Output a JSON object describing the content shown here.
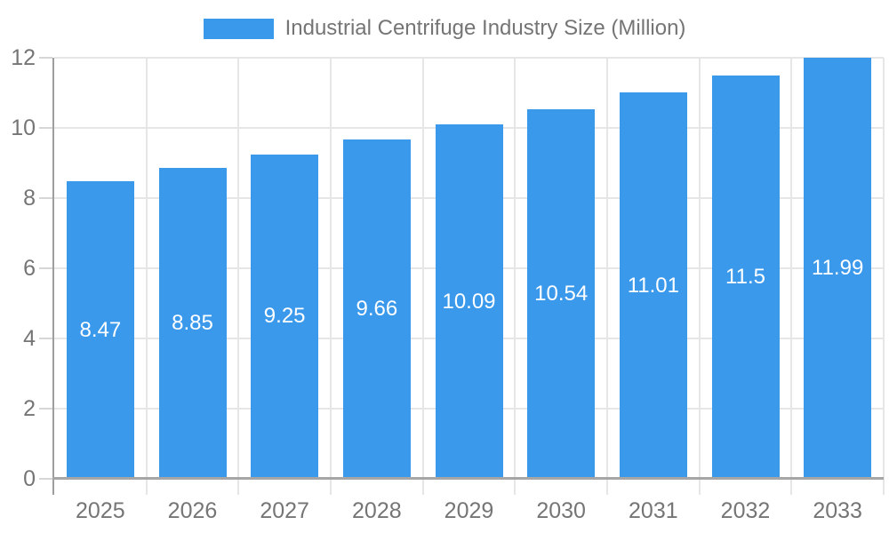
{
  "chart_data": {
    "type": "bar",
    "title": "Industrial Centrifuge Industry Size (Million)",
    "categories": [
      "2025",
      "2026",
      "2027",
      "2028",
      "2029",
      "2030",
      "2031",
      "2032",
      "2033"
    ],
    "values": [
      8.47,
      8.85,
      9.25,
      9.66,
      10.09,
      10.54,
      11.01,
      11.5,
      11.99
    ],
    "xlabel": "",
    "ylabel": "",
    "ylim": [
      0,
      12
    ],
    "y_ticks": [
      0,
      2,
      4,
      6,
      8,
      10,
      12
    ],
    "grid": true,
    "value_labels_inside_bars": true,
    "legend_position": "top-center",
    "colors": {
      "bar": "#3B99EC",
      "value_label": "#FFFFFF",
      "axis_text": "#757575",
      "grid_line": "#E6E6E6",
      "axis_line": "#9E9E9E",
      "background": "#FFFFFF"
    }
  },
  "legend": {
    "label": "Industrial Centrifuge Industry Size (Million)"
  }
}
